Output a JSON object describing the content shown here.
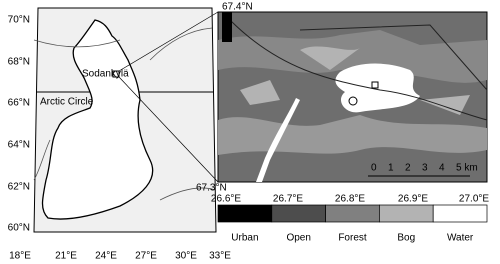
{
  "overview_map": {
    "lat_labels": [
      "70°N",
      "68°N",
      "66°N",
      "64°N",
      "62°N",
      "60°N"
    ],
    "lon_labels": [
      "18°E",
      "21°E",
      "24°E",
      "27°E",
      "30°E",
      "33°E"
    ],
    "place_label": "Sodankylä",
    "circle_label": "Arctic Circle"
  },
  "detail_map": {
    "lat_labels": [
      "67.4°N",
      "67.3°N"
    ],
    "lon_labels": [
      "26.6°E",
      "26.7°E",
      "26.8°E",
      "26.9°E",
      "27.0°E"
    ],
    "scale_labels": [
      "0",
      "1",
      "2",
      "3",
      "4",
      "5 km"
    ]
  },
  "legend": {
    "classes": [
      {
        "label": "Urban",
        "color": "#000000"
      },
      {
        "label": "Open",
        "color": "#4d4d4d"
      },
      {
        "label": "Forest",
        "color": "#808080"
      },
      {
        "label": "Bog",
        "color": "#b3b3b3"
      },
      {
        "label": "Water",
        "color": "#ffffff"
      }
    ]
  }
}
